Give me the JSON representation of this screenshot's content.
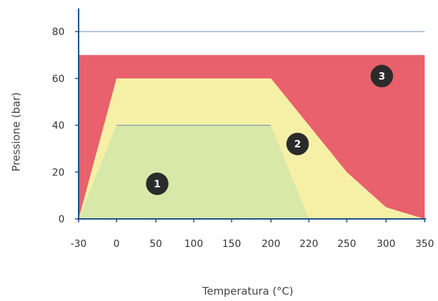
{
  "chart_data": {
    "type": "area",
    "title": "",
    "xlabel": "Temperatura (°C)",
    "ylabel": "Pressione (bar)",
    "x_ticks": [
      "-30",
      "0",
      "50",
      "100",
      "150",
      "200",
      "220",
      "250",
      "300",
      "350"
    ],
    "y_ticks": [
      0,
      20,
      40,
      60,
      80
    ],
    "ylim": [
      0,
      80
    ],
    "grid": false,
    "colors": {
      "region_1": "#d7e8a8",
      "region_2": "#f6f0a6",
      "region_3": "#e8616c",
      "line": "#6a8fb5",
      "axis": "#1f4f8a",
      "badge": "#2b2b2b"
    },
    "regions": [
      {
        "label": "1",
        "x": [
          "-30",
          "0",
          "200",
          "220"
        ],
        "y": [
          0,
          40,
          40,
          0
        ]
      },
      {
        "label": "2",
        "x": [
          "-30",
          "0",
          "200",
          "250",
          "300",
          "350"
        ],
        "y": [
          0,
          60,
          60,
          20,
          5,
          0
        ]
      },
      {
        "label": "3",
        "x": [
          "-30",
          "350"
        ],
        "y": [
          70,
          70
        ]
      }
    ],
    "reference_lines": [
      {
        "y": 80,
        "x_from": "-30",
        "x_to": "350"
      },
      {
        "y": 40,
        "x_from": "0",
        "x_to": "200"
      }
    ],
    "badges": [
      {
        "label": "1",
        "x": "50",
        "y": 15
      },
      {
        "label": "2",
        "x": "220",
        "y": 32
      },
      {
        "label": "3",
        "x": "300",
        "y": 61
      }
    ]
  }
}
